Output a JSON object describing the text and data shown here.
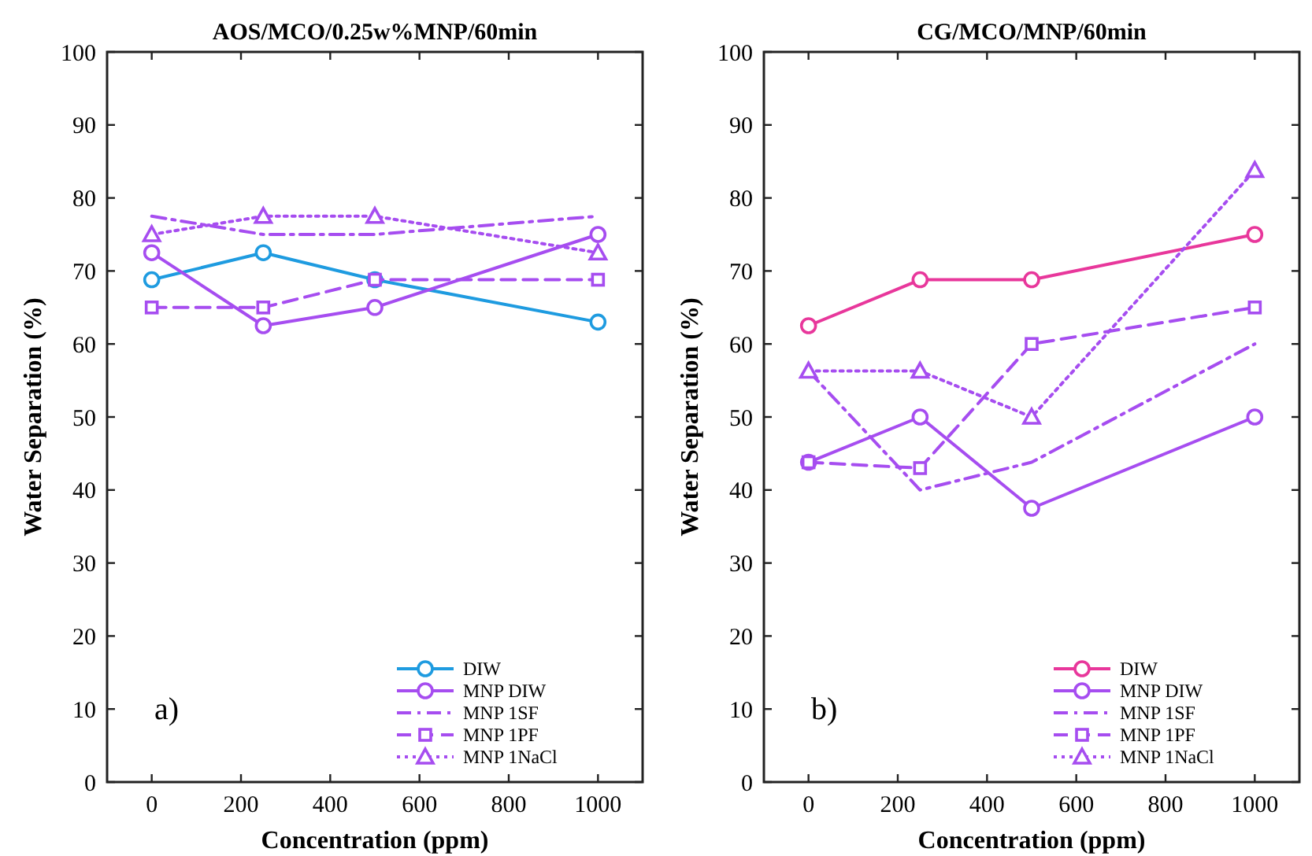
{
  "chart_data": [
    {
      "type": "line",
      "title": "AOS/MCO/0.25w%MNP/60min",
      "xlabel": "Concentration (ppm)",
      "ylabel": "Water Separation (%)",
      "x": [
        0,
        250,
        500,
        1000
      ],
      "xlim": [
        -100,
        1100
      ],
      "xticks": [
        0,
        200,
        400,
        600,
        800,
        1000
      ],
      "ylim": [
        0,
        100
      ],
      "yticks": [
        0,
        10,
        20,
        30,
        40,
        50,
        60,
        70,
        80,
        90,
        100
      ],
      "legend": "bottom right",
      "annotations": [
        {
          "text": "a)"
        }
      ],
      "series": [
        {
          "name": "DIW",
          "color": "#1e9be0",
          "values": [
            68.8,
            72.5,
            68.8,
            63
          ],
          "marker": "circle",
          "line_style": "solid"
        },
        {
          "name": "MNP DIW",
          "color": "#a64df0",
          "values": [
            72.5,
            62.5,
            65,
            75
          ],
          "marker": "circle",
          "line_style": "solid"
        },
        {
          "name": "MNP 1SF",
          "color": "#a64df0",
          "values": [
            77.5,
            75,
            75,
            77.5
          ],
          "marker": "none",
          "line_style": "dashdot"
        },
        {
          "name": "MNP 1PF",
          "color": "#a64df0",
          "values": [
            65,
            65,
            68.8,
            68.8
          ],
          "marker": "square",
          "line_style": "dashed"
        },
        {
          "name": "MNP 1NaCl",
          "color": "#a64df0",
          "values": [
            75,
            77.5,
            77.5,
            72.5
          ],
          "marker": "triangle",
          "line_style": "dotted"
        }
      ]
    },
    {
      "type": "line",
      "title": "CG/MCO/MNP/60min",
      "xlabel": "Concentration (ppm)",
      "ylabel": "Water Separation (%)",
      "x": [
        0,
        250,
        500,
        1000
      ],
      "xlim": [
        -100,
        1100
      ],
      "xticks": [
        0,
        200,
        400,
        600,
        800,
        1000
      ],
      "ylim": [
        0,
        100
      ],
      "yticks": [
        0,
        10,
        20,
        30,
        40,
        50,
        60,
        70,
        80,
        90,
        100
      ],
      "legend": "bottom right",
      "annotations": [
        {
          "text": "b)"
        }
      ],
      "series": [
        {
          "name": "DIW",
          "color": "#e8379b",
          "values": [
            62.5,
            68.8,
            68.8,
            75
          ],
          "marker": "circle",
          "line_style": "solid"
        },
        {
          "name": "MNP DIW",
          "color": "#a64df0",
          "values": [
            43.8,
            50,
            37.5,
            50
          ],
          "marker": "circle",
          "line_style": "solid"
        },
        {
          "name": "MNP 1SF",
          "color": "#a64df0",
          "values": [
            56.3,
            40,
            43.8,
            60
          ],
          "marker": "none",
          "line_style": "dashdot"
        },
        {
          "name": "MNP 1PF",
          "color": "#a64df0",
          "values": [
            43.8,
            43,
            60,
            65
          ],
          "marker": "square",
          "line_style": "dashed"
        },
        {
          "name": "MNP 1NaCl",
          "color": "#a64df0",
          "values": [
            56.3,
            56.3,
            50,
            83.8
          ],
          "marker": "triangle",
          "line_style": "dotted"
        }
      ]
    }
  ]
}
